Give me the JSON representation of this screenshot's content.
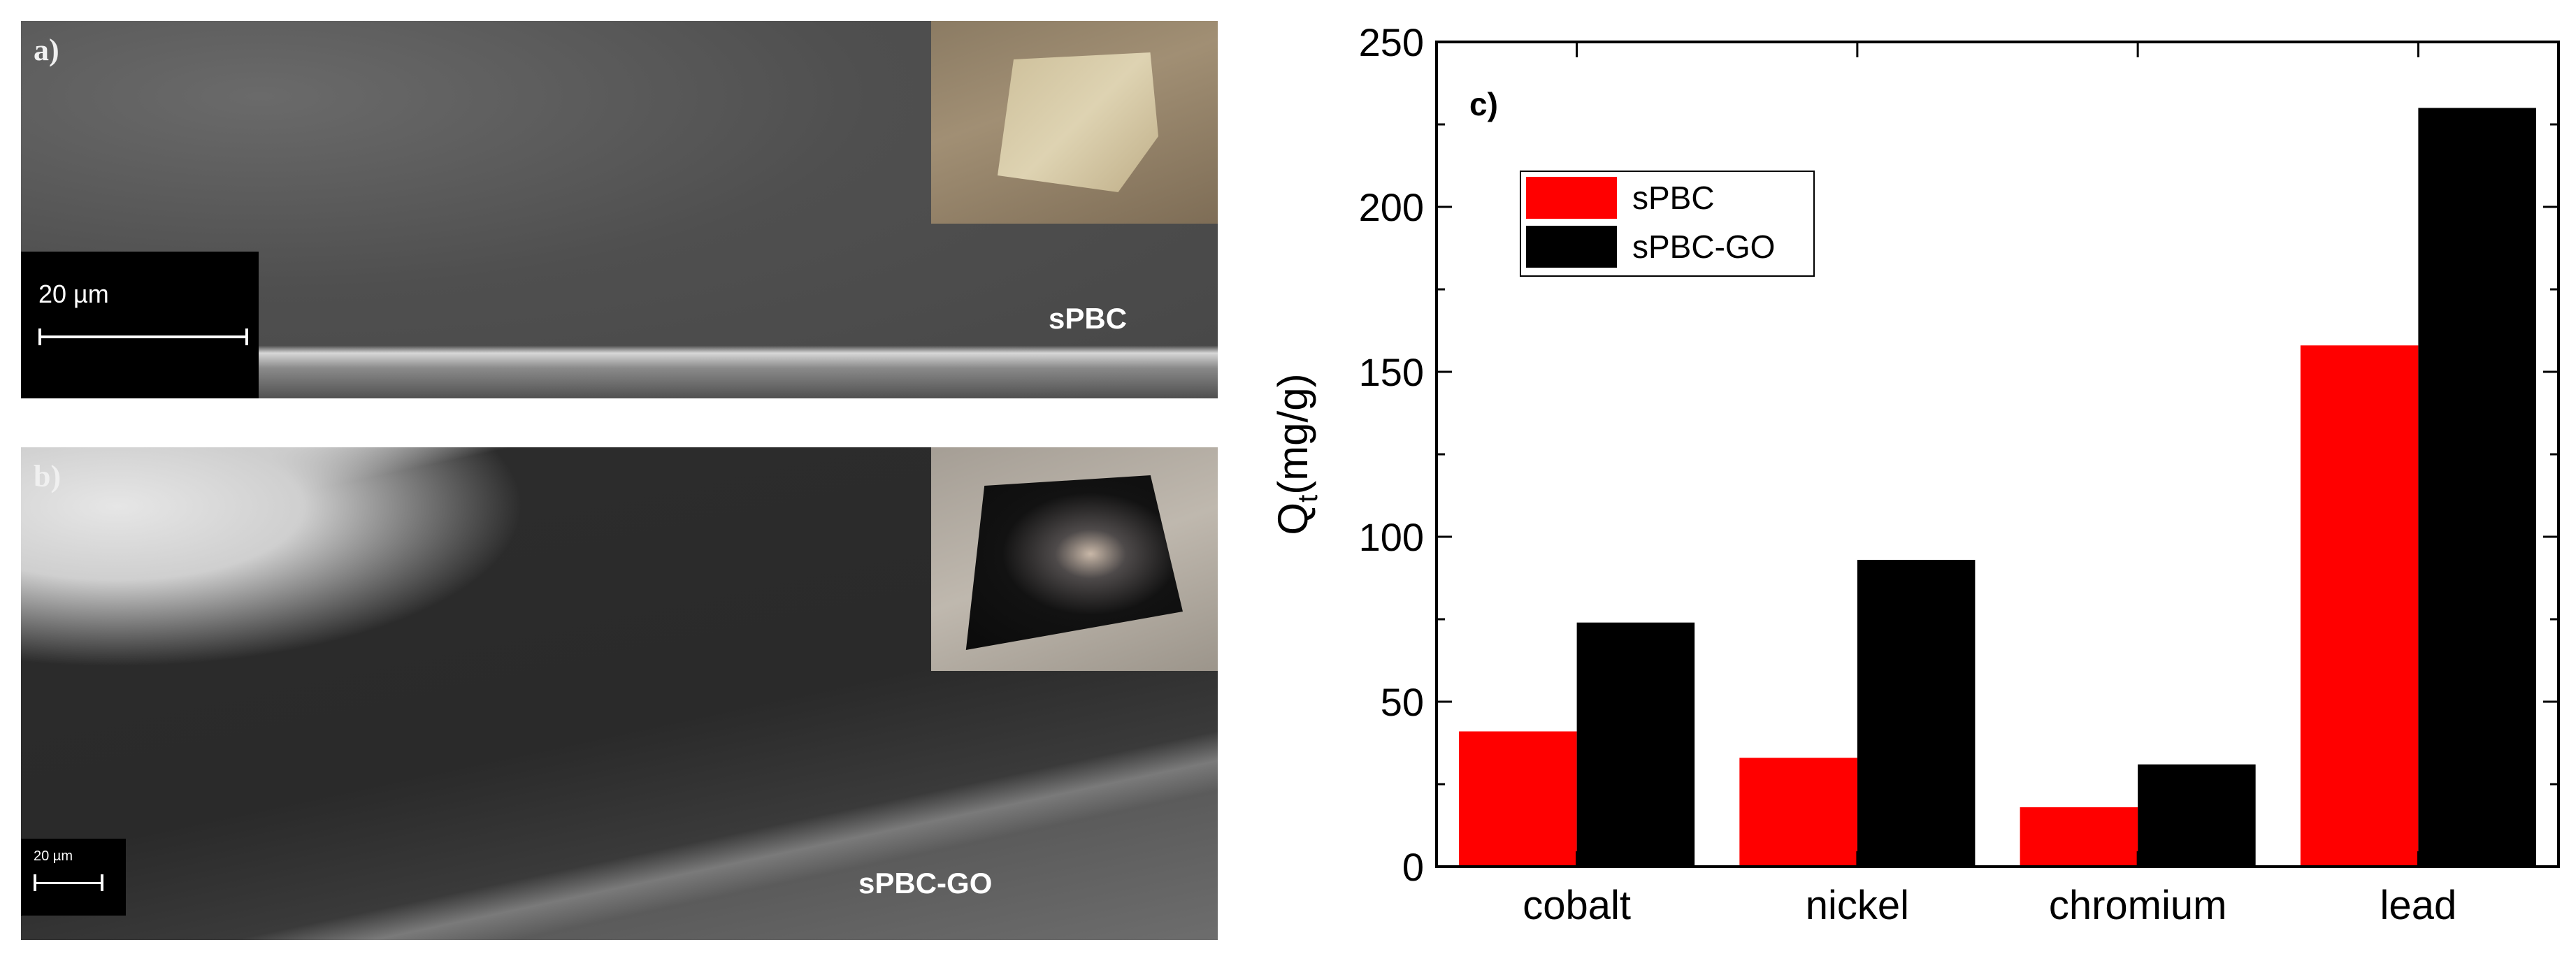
{
  "panels": [
    {
      "letter": "a)",
      "sample": "sPBC",
      "scale_bar": "20 µm"
    },
    {
      "letter": "b)",
      "sample": "sPBC-GO",
      "scale_bar": "20 µm"
    }
  ],
  "chart_data": {
    "type": "bar",
    "panel_letter": "c)",
    "categories": [
      "cobalt",
      "nickel",
      "chromium",
      "lead"
    ],
    "series": [
      {
        "name": "sPBC",
        "color": "#ff0000",
        "values": [
          41,
          33,
          18,
          158
        ]
      },
      {
        "name": "sPBC-GO",
        "color": "#000000",
        "values": [
          74,
          93,
          31,
          230
        ]
      }
    ],
    "ylabel": "Q",
    "ylabel_subscript": "t",
    "ylabel_unit": "(mg/g)",
    "ylim": [
      0,
      250
    ],
    "yticks": [
      0,
      50,
      100,
      150,
      200,
      250
    ],
    "legend": "top-left",
    "grid": false
  }
}
